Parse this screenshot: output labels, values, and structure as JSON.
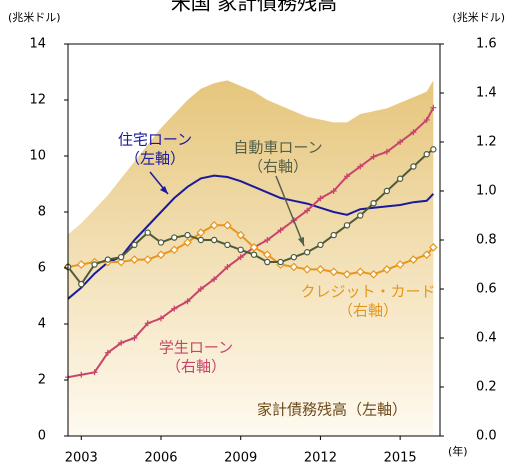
{
  "chart_data": {
    "type": "line",
    "title": "米国 家計債務残高",
    "y_unit": "(兆米ドル)",
    "y2_unit": "(兆米ドル)",
    "x_unit": "(年)",
    "xlim": [
      2002.5,
      2016.5
    ],
    "xticks": [
      2003,
      2006,
      2009,
      2012,
      2015
    ],
    "ylim": [
      0,
      14
    ],
    "yticks": [
      0,
      2,
      4,
      6,
      8,
      10,
      12,
      14
    ],
    "y2lim": [
      0,
      1.6
    ],
    "y2ticks": [
      {
        "value": 0,
        "label": "0.0"
      },
      0.2,
      0.4,
      0.6,
      0.8,
      {
        "value": 1,
        "label": "1.0"
      },
      1.2,
      1.4,
      1.6
    ],
    "x": [
      2002.5,
      2003,
      2003.5,
      2004,
      2004.5,
      2005,
      2005.5,
      2006,
      2006.5,
      2007,
      2007.5,
      2008,
      2008.5,
      2009,
      2009.5,
      2010,
      2010.5,
      2011,
      2011.5,
      2012,
      2012.5,
      2013,
      2013.5,
      2014,
      2014.5,
      2015,
      2015.5,
      2016,
      2016.25
    ],
    "series": [
      {
        "name": "家計債務残高",
        "kind": "area",
        "color": "#e6c67c",
        "axis": "y",
        "values": [
          7.2,
          7.6,
          8.1,
          8.6,
          9.2,
          9.8,
          10.4,
          11.0,
          11.5,
          12.0,
          12.4,
          12.6,
          12.7,
          12.5,
          12.3,
          12.0,
          11.8,
          11.6,
          11.4,
          11.3,
          11.2,
          11.2,
          11.5,
          11.6,
          11.7,
          11.9,
          12.1,
          12.3,
          12.7
        ]
      },
      {
        "name": "住宅ローン",
        "kind": "line",
        "color": "#1a1a9c",
        "axis": "y",
        "values": [
          4.9,
          5.3,
          5.8,
          6.2,
          6.4,
          7.0,
          7.5,
          8.0,
          8.5,
          8.9,
          9.2,
          9.3,
          9.25,
          9.1,
          8.9,
          8.7,
          8.5,
          8.4,
          8.3,
          8.15,
          8.0,
          7.9,
          8.1,
          8.15,
          8.2,
          8.25,
          8.35,
          8.4,
          8.65
        ]
      },
      {
        "name": "学生ローン",
        "kind": "line",
        "marker": "plus",
        "color": "#c8456a",
        "axis": "y2",
        "values": [
          0.24,
          0.25,
          0.26,
          0.34,
          0.38,
          0.4,
          0.46,
          0.48,
          0.52,
          0.55,
          0.6,
          0.64,
          0.69,
          0.73,
          0.77,
          0.8,
          0.84,
          0.88,
          0.92,
          0.97,
          1.0,
          1.06,
          1.1,
          1.14,
          1.16,
          1.2,
          1.24,
          1.29,
          1.34
        ]
      },
      {
        "name": "クレジット・カード",
        "kind": "line",
        "marker": "diamond",
        "color": "#e8961e",
        "axis": "y2",
        "values": [
          0.69,
          0.7,
          0.71,
          0.71,
          0.71,
          0.72,
          0.72,
          0.74,
          0.76,
          0.79,
          0.83,
          0.86,
          0.86,
          0.82,
          0.77,
          0.74,
          0.7,
          0.69,
          0.68,
          0.68,
          0.67,
          0.66,
          0.67,
          0.66,
          0.68,
          0.7,
          0.72,
          0.74,
          0.77
        ]
      },
      {
        "name": "自動車ローン",
        "kind": "line",
        "marker": "circle",
        "color": "#4e5a3a",
        "axis": "y2",
        "values": [
          0.69,
          0.62,
          0.7,
          0.72,
          0.73,
          0.78,
          0.83,
          0.79,
          0.81,
          0.82,
          0.8,
          0.8,
          0.78,
          0.76,
          0.74,
          0.71,
          0.71,
          0.73,
          0.75,
          0.78,
          0.82,
          0.86,
          0.9,
          0.95,
          1.0,
          1.05,
          1.1,
          1.15,
          1.17
        ]
      }
    ],
    "annotations": [
      {
        "lines": [
          "住宅ローン",
          "（左軸）"
        ],
        "color": "#1a1a9c"
      },
      {
        "lines": [
          "自動車ローン",
          "（右軸）"
        ],
        "color": "#55604a"
      },
      {
        "lines": [
          "クレジット・カード",
          "（右軸）"
        ],
        "color": "#e8961e"
      },
      {
        "lines": [
          "学生ローン",
          "（右軸）"
        ],
        "color": "#c8456a"
      },
      {
        "lines": [
          "家計債務残高（左軸）"
        ],
        "color": "#6b4a1a"
      }
    ]
  }
}
